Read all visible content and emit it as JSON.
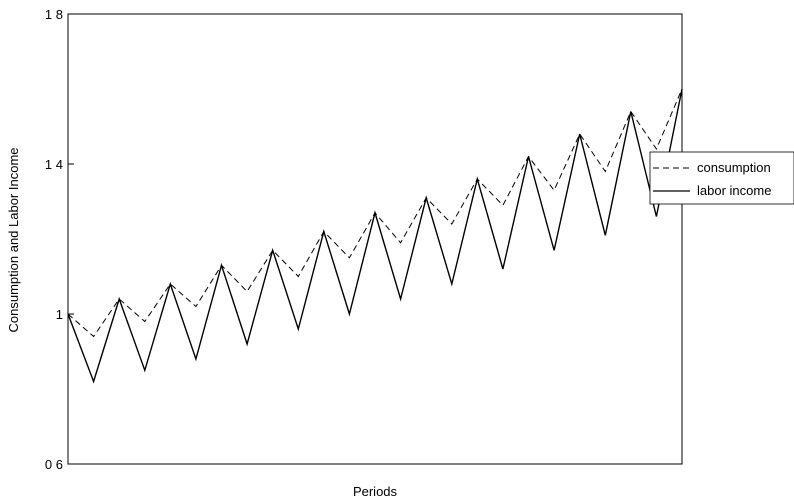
{
  "chart_data": {
    "type": "line",
    "title": "",
    "xlabel": "Periods",
    "ylabel": "Consumption and Labor Income",
    "ylim": [
      0.6,
      1.8
    ],
    "xlim": [
      0,
      24
    ],
    "y_ticks": [
      {
        "value": 0.6,
        "label": "0 6"
      },
      {
        "value": 1.0,
        "label": "1"
      },
      {
        "value": 1.4,
        "label": "1 4"
      },
      {
        "value": 1.8,
        "label": "1 8"
      }
    ],
    "grid": false,
    "legend_position": "right",
    "x": [
      0,
      1,
      2,
      3,
      4,
      5,
      6,
      7,
      8,
      9,
      10,
      11,
      12,
      13,
      14,
      15,
      16,
      17,
      18,
      19,
      20,
      21,
      22,
      23,
      24
    ],
    "series": [
      {
        "name": "consumption",
        "style": "dashed",
        "color": "#000000",
        "values": [
          1.0,
          0.94,
          1.04,
          0.98,
          1.08,
          1.02,
          1.13,
          1.06,
          1.17,
          1.1,
          1.22,
          1.15,
          1.27,
          1.19,
          1.31,
          1.24,
          1.36,
          1.29,
          1.42,
          1.33,
          1.48,
          1.38,
          1.54,
          1.44,
          1.6
        ]
      },
      {
        "name": "labor income",
        "style": "solid",
        "color": "#000000",
        "values": [
          1.0,
          0.82,
          1.04,
          0.85,
          1.08,
          0.88,
          1.13,
          0.92,
          1.17,
          0.96,
          1.22,
          1.0,
          1.27,
          1.04,
          1.31,
          1.08,
          1.36,
          1.12,
          1.42,
          1.17,
          1.48,
          1.21,
          1.54,
          1.26,
          1.6
        ]
      }
    ]
  }
}
